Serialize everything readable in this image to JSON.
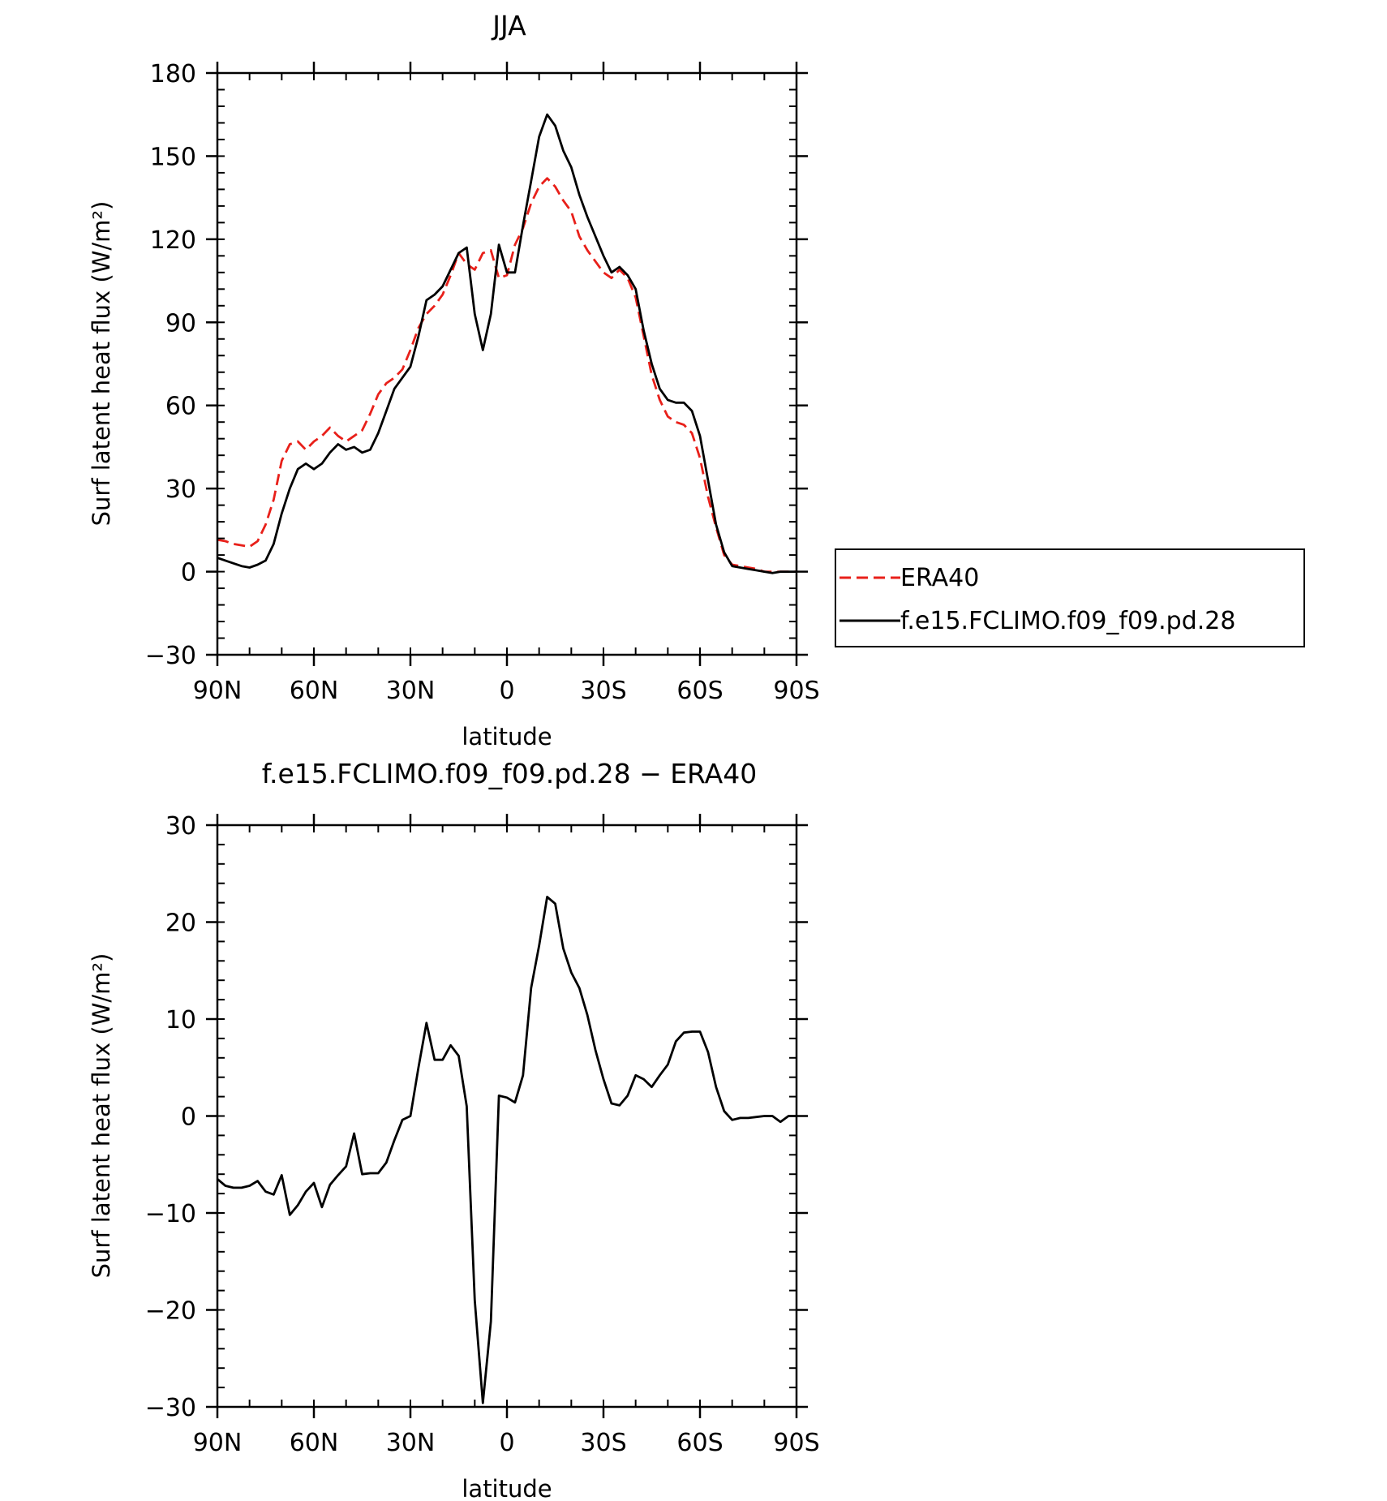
{
  "chart_data": [
    {
      "type": "line",
      "title": "JJA",
      "xlabel": "latitude",
      "ylabel": "Surf latent heat flux (W/m²)",
      "xlim": [
        90,
        -90
      ],
      "ylim": [
        -30,
        180
      ],
      "x_ticks": [
        90,
        60,
        30,
        0,
        -30,
        -60,
        -90
      ],
      "x_tick_labels": [
        "90N",
        "60N",
        "30N",
        "0",
        "30S",
        "60S",
        "90S"
      ],
      "y_ticks": [
        -30,
        0,
        30,
        60,
        90,
        120,
        150,
        180
      ],
      "y_tick_labels": [
        "−30",
        "0",
        "30",
        "60",
        "90",
        "120",
        "150",
        "180"
      ],
      "grid": false,
      "legend_position": "right",
      "series": [
        {
          "name": "ERA40",
          "color": "#e8201a",
          "dash": "dashed",
          "x": [
            90,
            87.5,
            85,
            82.5,
            80,
            77.5,
            75,
            72.5,
            70,
            67.5,
            65,
            62.5,
            60,
            57.5,
            55,
            52.5,
            50,
            47.5,
            45,
            42.5,
            40,
            37.5,
            35,
            32.5,
            30,
            27.5,
            25,
            22.5,
            20,
            17.5,
            15,
            12.5,
            10,
            7.5,
            5,
            2.5,
            0,
            -2.5,
            -5,
            -7.5,
            -10,
            -12.5,
            -15,
            -17.5,
            -20,
            -22.5,
            -25,
            -27.5,
            -30,
            -32.5,
            -35,
            -37.5,
            -40,
            -42.5,
            -45,
            -47.5,
            -50,
            -52.5,
            -55,
            -57.5,
            -60,
            -62.5,
            -65,
            -67.5,
            -70,
            -72.5,
            -75,
            -77.5,
            -80,
            -82.5,
            -85,
            -87.5,
            -90
          ],
          "values": [
            11.5,
            11,
            10,
            9.5,
            9,
            11,
            17,
            26,
            40,
            46,
            47,
            44,
            47,
            49,
            52,
            49,
            47,
            49,
            51,
            57,
            64,
            68,
            70,
            73,
            80,
            88,
            93,
            96,
            100,
            107,
            115,
            111,
            109,
            115,
            116,
            106,
            107,
            118,
            124,
            133,
            139,
            142,
            139,
            134,
            130,
            121,
            116,
            112,
            108,
            106,
            109,
            106,
            99,
            85,
            71,
            62,
            56,
            54,
            53,
            50,
            41,
            27,
            16,
            6,
            2.5,
            2,
            1.5,
            1,
            0,
            0,
            0,
            0,
            0
          ]
        },
        {
          "name": "f.e15.FCLIMO.f09_f09.pd.28",
          "color": "#000000",
          "dash": "solid",
          "x": [
            90,
            87.5,
            85,
            82.5,
            80,
            77.5,
            75,
            72.5,
            70,
            67.5,
            65,
            62.5,
            60,
            57.5,
            55,
            52.5,
            50,
            47.5,
            45,
            42.5,
            40,
            37.5,
            35,
            32.5,
            30,
            27.5,
            25,
            22.5,
            20,
            17.5,
            15,
            12.5,
            10,
            7.5,
            5,
            2.5,
            0,
            -2.5,
            -5,
            -7.5,
            -10,
            -12.5,
            -15,
            -17.5,
            -20,
            -22.5,
            -25,
            -27.5,
            -30,
            -32.5,
            -35,
            -37.5,
            -40,
            -42.5,
            -45,
            -47.5,
            -50,
            -52.5,
            -55,
            -57.5,
            -60,
            -62.5,
            -65,
            -67.5,
            -70,
            -72.5,
            -75,
            -77.5,
            -80,
            -82.5,
            -85,
            -87.5,
            -90
          ],
          "values": [
            5,
            4,
            3,
            2,
            1.5,
            2.5,
            4,
            10,
            21,
            30,
            37,
            39,
            37,
            39,
            43,
            46,
            44,
            45,
            43,
            44,
            50,
            58,
            66,
            70,
            74,
            85,
            98,
            100,
            103,
            109,
            115,
            117,
            93,
            80,
            93,
            118,
            108,
            108,
            125,
            141,
            157,
            165,
            161,
            152,
            146,
            136,
            128,
            121,
            114,
            108,
            110,
            107,
            102,
            87,
            75,
            66,
            62,
            61,
            61,
            58,
            49,
            33,
            17,
            7,
            2,
            1.5,
            1,
            0.5,
            0,
            -0.5,
            0,
            0,
            0
          ]
        }
      ]
    },
    {
      "type": "line",
      "title": "f.e15.FCLIMO.f09_f09.pd.28 − ERA40",
      "xlabel": "latitude",
      "ylabel": "Surf latent heat flux (W/m²)",
      "xlim": [
        90,
        -90
      ],
      "ylim": [
        -30,
        30
      ],
      "x_ticks": [
        90,
        60,
        30,
        0,
        -30,
        -60,
        -90
      ],
      "x_tick_labels": [
        "90N",
        "60N",
        "30N",
        "0",
        "30S",
        "60S",
        "90S"
      ],
      "y_ticks": [
        -30,
        -20,
        -10,
        0,
        10,
        20,
        30
      ],
      "y_tick_labels": [
        "−30",
        "−20",
        "−10",
        "0",
        "10",
        "20",
        "30"
      ],
      "grid": false,
      "series": [
        {
          "color": "#000000",
          "dash": "solid",
          "x": [
            90,
            87.5,
            85,
            82.5,
            80,
            77.5,
            75,
            72.5,
            70,
            67.5,
            65,
            62.5,
            60,
            57.5,
            55,
            52.5,
            50,
            47.5,
            45,
            42.5,
            40,
            37.5,
            35,
            32.5,
            30,
            27.5,
            25,
            22.5,
            20,
            17.5,
            15,
            12.5,
            10,
            7.5,
            5,
            2.5,
            0,
            -2.5,
            -5,
            -7.5,
            -10,
            -12.5,
            -15,
            -17.5,
            -20,
            -22.5,
            -25,
            -27.5,
            -30,
            -32.5,
            -35,
            -37.5,
            -40,
            -42.5,
            -45,
            -47.5,
            -50,
            -52.5,
            -55,
            -57.5,
            -60,
            -62.5,
            -65,
            -67.5,
            -70,
            -72.5,
            -75,
            -77.5,
            -80,
            -82.5,
            -85,
            -87.5,
            -90
          ],
          "values": [
            -6.5,
            -7.2,
            -7.4,
            -7.4,
            -7.2,
            -6.7,
            -7.8,
            -8.1,
            -6.1,
            -10.2,
            -9.2,
            -7.8,
            -6.9,
            -9.4,
            -7.1,
            -6.1,
            -5.2,
            -1.8,
            -6.0,
            -5.9,
            -5.9,
            -4.8,
            -2.5,
            -0.4,
            0,
            5,
            9.6,
            5.8,
            5.8,
            7.3,
            6.2,
            1,
            -19,
            -29.6,
            -21.2,
            2.1,
            1.9,
            1.4,
            4.2,
            13.2,
            17.6,
            22.6,
            21.9,
            17.3,
            14.8,
            13.2,
            10.4,
            6.8,
            3.8,
            1.3,
            1.1,
            2.1,
            4.2,
            3.8,
            3.0,
            4.2,
            5.3,
            7.7,
            8.6,
            8.7,
            8.7,
            6.6,
            3.0,
            0.5,
            -0.4,
            -0.2,
            -0.2,
            -0.1,
            0,
            0,
            -0.6,
            0,
            0
          ]
        }
      ]
    }
  ]
}
